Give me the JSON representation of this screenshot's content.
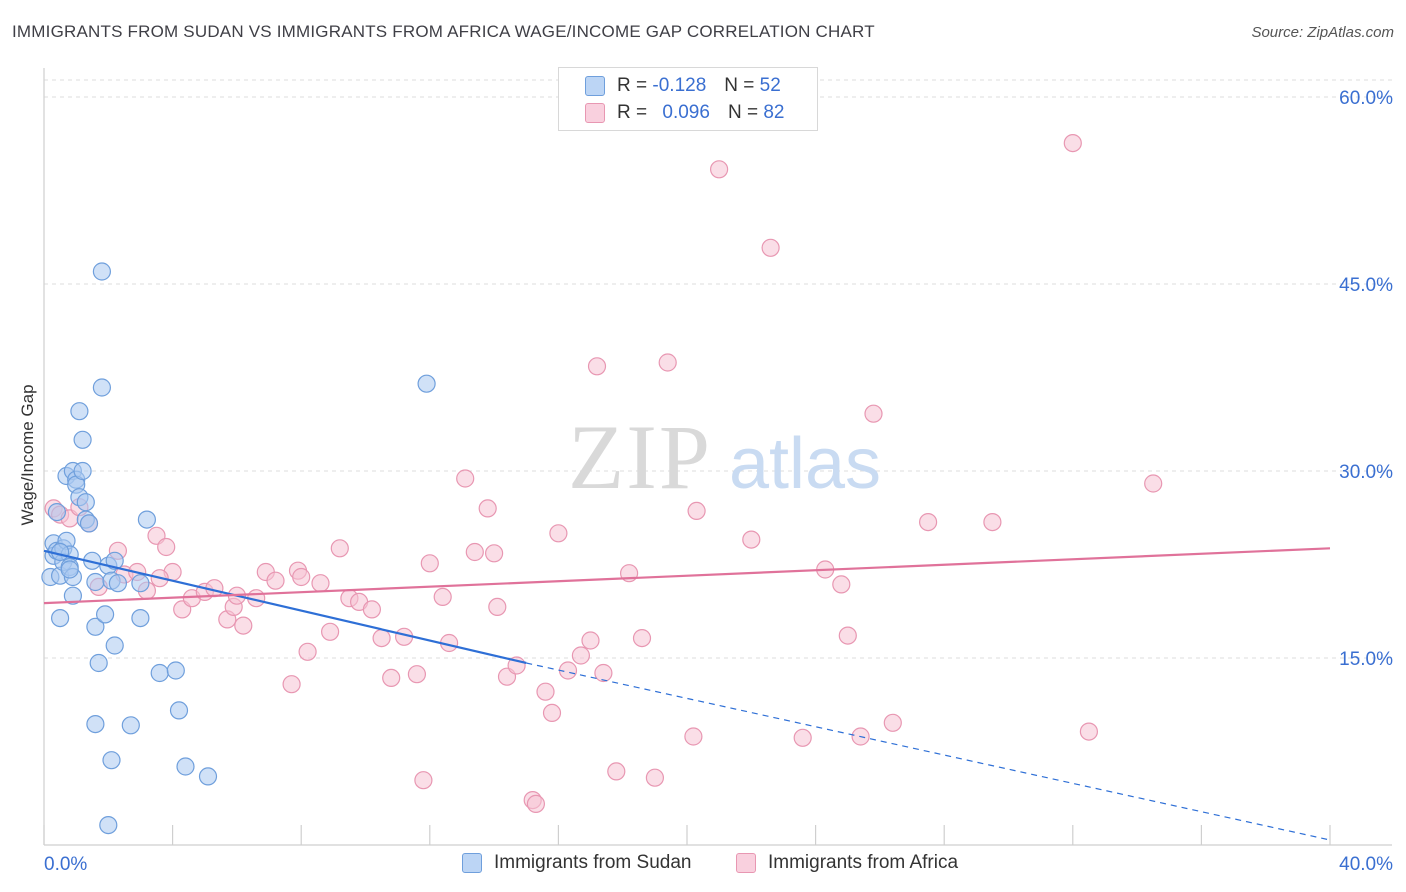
{
  "title": "IMMIGRANTS FROM SUDAN VS IMMIGRANTS FROM AFRICA WAGE/INCOME GAP CORRELATION CHART",
  "source": "Source: ZipAtlas.com",
  "watermark": {
    "zip": "ZIP",
    "atlas": "atlas"
  },
  "legend_top": [
    {
      "r_label": "R =",
      "r_value": "-0.128",
      "n_label": "N =",
      "n_value": "52"
    },
    {
      "r_label": "R =",
      "r_value": "0.096",
      "n_label": "N =",
      "n_value": "82"
    }
  ],
  "colors": {
    "sudan_fill": "#a9c8f0",
    "sudan_stroke": "#6f9fdc",
    "sudan_line": "#2e6fd6",
    "africa_fill": "#f6c3d3",
    "africa_stroke": "#e897b2",
    "africa_line": "#e0729a",
    "tick_label": "#3a6fd1",
    "grid": "#dddddd"
  },
  "chart_data": {
    "type": "scatter",
    "xlabel": "",
    "ylabel": "Wage/Income Gap",
    "xlim": [
      0,
      40
    ],
    "ylim": [
      0,
      60
    ],
    "y_ticks": [
      15,
      30,
      45,
      60
    ],
    "y_tick_labels": [
      "15.0%",
      "30.0%",
      "45.0%",
      "60.0%"
    ],
    "x_tick_labels": [
      "0.0%",
      "40.0%"
    ],
    "grid": true,
    "legend_position": "top-center",
    "series": [
      {
        "name": "Immigrants from Sudan",
        "color": "sudan",
        "trend": {
          "x_start": 0,
          "y_start": 23.6,
          "x_solid_end": 15,
          "y_solid_end": 14.6,
          "x_end": 40,
          "y_end": 0.4
        },
        "points": [
          [
            0.2,
            21.5
          ],
          [
            0.3,
            24.2
          ],
          [
            0.3,
            23.2
          ],
          [
            0.4,
            23.6
          ],
          [
            0.5,
            18.2
          ],
          [
            0.5,
            21.6
          ],
          [
            0.6,
            23.8
          ],
          [
            0.6,
            22.7
          ],
          [
            0.7,
            24.4
          ],
          [
            0.7,
            29.6
          ],
          [
            0.8,
            23.3
          ],
          [
            0.8,
            22.3
          ],
          [
            0.9,
            30.0
          ],
          [
            0.9,
            21.5
          ],
          [
            0.9,
            20.0
          ],
          [
            1.0,
            29.3
          ],
          [
            1.0,
            28.9
          ],
          [
            1.1,
            34.8
          ],
          [
            1.1,
            27.9
          ],
          [
            1.2,
            32.5
          ],
          [
            1.2,
            30.0
          ],
          [
            1.3,
            27.5
          ],
          [
            1.3,
            26.1
          ],
          [
            1.4,
            25.8
          ],
          [
            1.5,
            22.8
          ],
          [
            1.6,
            21.1
          ],
          [
            1.8,
            36.7
          ],
          [
            1.8,
            46.0
          ],
          [
            1.7,
            14.6
          ],
          [
            1.6,
            17.5
          ],
          [
            1.9,
            18.5
          ],
          [
            2.0,
            22.4
          ],
          [
            2.1,
            21.2
          ],
          [
            2.2,
            22.8
          ],
          [
            2.2,
            16.0
          ],
          [
            2.3,
            21.0
          ],
          [
            2.7,
            9.6
          ],
          [
            3.0,
            18.2
          ],
          [
            3.0,
            21.0
          ],
          [
            3.2,
            26.1
          ],
          [
            3.6,
            13.8
          ],
          [
            4.1,
            14.0
          ],
          [
            4.2,
            10.8
          ],
          [
            4.4,
            6.3
          ],
          [
            5.1,
            5.5
          ],
          [
            1.6,
            9.7
          ],
          [
            2.1,
            6.8
          ],
          [
            2.0,
            1.6
          ],
          [
            11.9,
            37.0
          ],
          [
            0.4,
            26.7
          ],
          [
            0.5,
            23.5
          ],
          [
            0.8,
            22.1
          ]
        ]
      },
      {
        "name": "Immigrants from Africa",
        "color": "africa",
        "trend": {
          "x_start": 0,
          "y_start": 19.4,
          "x_end": 40,
          "y_end": 23.8
        },
        "points": [
          [
            0.3,
            27.0
          ],
          [
            0.5,
            26.5
          ],
          [
            0.8,
            26.2
          ],
          [
            1.1,
            27.1
          ],
          [
            1.4,
            25.8
          ],
          [
            1.7,
            20.7
          ],
          [
            2.3,
            23.6
          ],
          [
            2.5,
            21.7
          ],
          [
            2.9,
            21.9
          ],
          [
            3.2,
            20.4
          ],
          [
            3.5,
            24.8
          ],
          [
            3.8,
            23.9
          ],
          [
            4.0,
            21.9
          ],
          [
            4.3,
            18.9
          ],
          [
            4.6,
            19.8
          ],
          [
            5.0,
            20.3
          ],
          [
            5.3,
            20.6
          ],
          [
            5.7,
            18.1
          ],
          [
            5.9,
            19.1
          ],
          [
            6.2,
            17.6
          ],
          [
            6.6,
            19.8
          ],
          [
            6.9,
            21.9
          ],
          [
            7.2,
            21.2
          ],
          [
            7.7,
            12.9
          ],
          [
            7.9,
            22.0
          ],
          [
            8.2,
            15.5
          ],
          [
            8.6,
            21.0
          ],
          [
            8.9,
            17.1
          ],
          [
            9.2,
            23.8
          ],
          [
            9.5,
            19.8
          ],
          [
            9.8,
            19.5
          ],
          [
            10.2,
            18.9
          ],
          [
            10.5,
            16.6
          ],
          [
            10.8,
            13.4
          ],
          [
            11.2,
            16.7
          ],
          [
            11.6,
            13.7
          ],
          [
            12.0,
            22.6
          ],
          [
            12.4,
            19.9
          ],
          [
            12.6,
            16.2
          ],
          [
            13.1,
            29.4
          ],
          [
            13.4,
            23.5
          ],
          [
            13.8,
            27.0
          ],
          [
            14.1,
            19.1
          ],
          [
            14.4,
            13.5
          ],
          [
            14.7,
            14.4
          ],
          [
            15.2,
            3.6
          ],
          [
            15.3,
            3.3
          ],
          [
            15.6,
            12.3
          ],
          [
            15.8,
            10.6
          ],
          [
            16.0,
            25.0
          ],
          [
            16.3,
            14.0
          ],
          [
            16.7,
            15.2
          ],
          [
            17.0,
            16.4
          ],
          [
            17.4,
            13.8
          ],
          [
            17.8,
            5.9
          ],
          [
            18.2,
            21.8
          ],
          [
            18.6,
            16.6
          ],
          [
            19.0,
            5.4
          ],
          [
            19.4,
            38.7
          ],
          [
            20.2,
            8.7
          ],
          [
            20.3,
            26.8
          ],
          [
            21.0,
            54.2
          ],
          [
            22.0,
            24.5
          ],
          [
            22.6,
            47.9
          ],
          [
            23.6,
            8.6
          ],
          [
            24.3,
            22.1
          ],
          [
            24.8,
            20.9
          ],
          [
            25.0,
            16.8
          ],
          [
            25.8,
            34.6
          ],
          [
            25.4,
            8.7
          ],
          [
            26.4,
            9.8
          ],
          [
            27.5,
            25.9
          ],
          [
            29.5,
            25.9
          ],
          [
            32.0,
            56.3
          ],
          [
            32.5,
            9.1
          ],
          [
            34.5,
            29.0
          ],
          [
            17.2,
            38.4
          ],
          [
            14.0,
            23.4
          ],
          [
            11.8,
            5.2
          ],
          [
            8.0,
            21.5
          ],
          [
            6.0,
            20.0
          ],
          [
            3.6,
            21.4
          ]
        ]
      }
    ]
  }
}
